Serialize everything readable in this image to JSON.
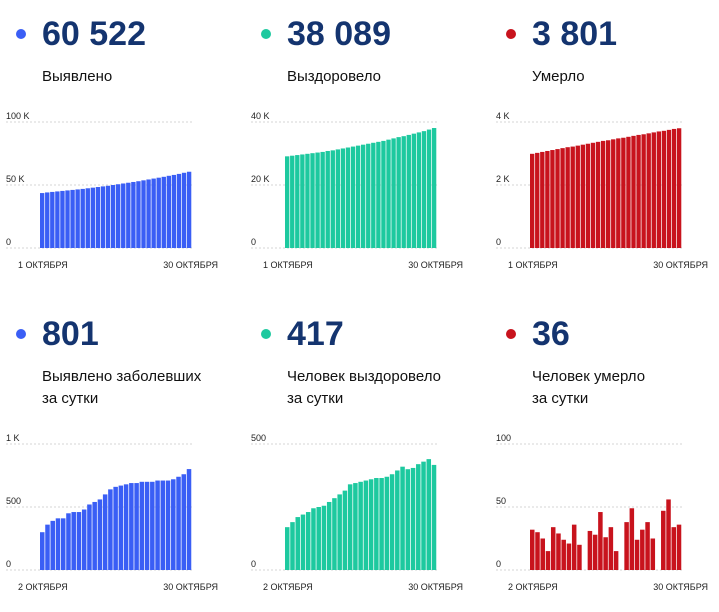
{
  "panels": [
    {
      "value": "60 522",
      "label": "Выявлено",
      "color": "#3a5ef5"
    },
    {
      "value": "38 089",
      "label": "Выздоровело",
      "color": "#1dc99f"
    },
    {
      "value": "3 801",
      "label": "Умерло",
      "color": "#c8131d"
    },
    {
      "value": "801",
      "label": "Выявлено заболевших\nза сутки",
      "color": "#3a5ef5"
    },
    {
      "value": "417",
      "label": "Человек выздоровело\nза сутки",
      "color": "#1dc99f"
    },
    {
      "value": "36",
      "label": "Человек умерло\nза сутки",
      "color": "#c8131d"
    }
  ],
  "chart_data": [
    {
      "type": "bar",
      "series_name": "Выявлено",
      "color": "#3a5ef5",
      "x_start_label": "1 ОКТЯБРЯ",
      "x_end_label": "30 ОКТЯБРЯ",
      "yticks": [
        0,
        50000,
        100000
      ],
      "ytick_labels": [
        "0",
        "50 K",
        "100 K"
      ],
      "ylim": [
        0,
        100000
      ],
      "values": [
        43600,
        44100,
        44500,
        44900,
        45300,
        45700,
        46100,
        46500,
        46900,
        47400,
        47900,
        48400,
        48900,
        49400,
        50000,
        50600,
        51200,
        51800,
        52400,
        53000,
        53700,
        54400,
        55100,
        55800,
        56500,
        57300,
        58000,
        58800,
        59700,
        60522
      ]
    },
    {
      "type": "bar",
      "series_name": "Выздоровело",
      "color": "#1dc99f",
      "x_start_label": "1 ОКТЯБРЯ",
      "x_end_label": "30 ОКТЯБРЯ",
      "yticks": [
        0,
        20000,
        40000
      ],
      "ytick_labels": [
        "0",
        "20 K",
        "40 K"
      ],
      "ylim": [
        0,
        40000
      ],
      "values": [
        29100,
        29300,
        29500,
        29700,
        29900,
        30100,
        30300,
        30500,
        30800,
        31000,
        31300,
        31600,
        31900,
        32200,
        32500,
        32800,
        33100,
        33400,
        33700,
        34000,
        34400,
        34800,
        35200,
        35500,
        35900,
        36300,
        36700,
        37100,
        37600,
        38089
      ]
    },
    {
      "type": "bar",
      "series_name": "Умерло",
      "color": "#c8131d",
      "x_start_label": "1 ОКТЯБРЯ",
      "x_end_label": "30 ОКТЯБРЯ",
      "yticks": [
        0,
        2000,
        4000
      ],
      "ytick_labels": [
        "0",
        "2 K",
        "4 K"
      ],
      "ylim": [
        0,
        4000
      ],
      "values": [
        2990,
        3020,
        3050,
        3080,
        3110,
        3140,
        3170,
        3200,
        3220,
        3250,
        3280,
        3310,
        3340,
        3370,
        3400,
        3420,
        3450,
        3480,
        3500,
        3530,
        3560,
        3590,
        3610,
        3640,
        3670,
        3700,
        3720,
        3750,
        3780,
        3801
      ]
    },
    {
      "type": "bar",
      "series_name": "Выявлено заболевших за сутки",
      "color": "#3a5ef5",
      "x_start_label": "2 ОКТЯБРЯ",
      "x_end_label": "30 ОКТЯБРЯ",
      "yticks": [
        0,
        500,
        1000
      ],
      "ytick_labels": [
        "0",
        "500",
        "1 K"
      ],
      "ylim": [
        0,
        1000
      ],
      "values": [
        300,
        360,
        390,
        410,
        410,
        450,
        460,
        460,
        480,
        520,
        540,
        560,
        600,
        640,
        660,
        670,
        680,
        690,
        690,
        700,
        700,
        700,
        710,
        710,
        710,
        720,
        740,
        760,
        801
      ]
    },
    {
      "type": "bar",
      "series_name": "Человек выздоровело за сутки",
      "color": "#1dc99f",
      "x_start_label": "2 ОКТЯБРЯ",
      "x_end_label": "30 ОКТЯБРЯ",
      "yticks": [
        0,
        500
      ],
      "ytick_labels": [
        "0",
        "500"
      ],
      "ylim": [
        0,
        500
      ],
      "values": [
        170,
        190,
        210,
        220,
        230,
        245,
        250,
        255,
        270,
        285,
        300,
        315,
        340,
        345,
        350,
        355,
        360,
        365,
        365,
        370,
        380,
        395,
        410,
        400,
        405,
        420,
        430,
        440,
        417
      ]
    },
    {
      "type": "bar",
      "series_name": "Человек умерло за сутки",
      "color": "#c8131d",
      "x_start_label": "2 ОКТЯБРЯ",
      "x_end_label": "30 ОКТЯБРЯ",
      "yticks": [
        0,
        50,
        100
      ],
      "ytick_labels": [
        "0",
        "50",
        "100"
      ],
      "ylim": [
        0,
        100
      ],
      "values": [
        32,
        30,
        25,
        15,
        34,
        29,
        24,
        21,
        36,
        20,
        0,
        31,
        28,
        46,
        26,
        34,
        15,
        0,
        38,
        49,
        24,
        32,
        38,
        25,
        0,
        47,
        56,
        34,
        36
      ]
    }
  ]
}
